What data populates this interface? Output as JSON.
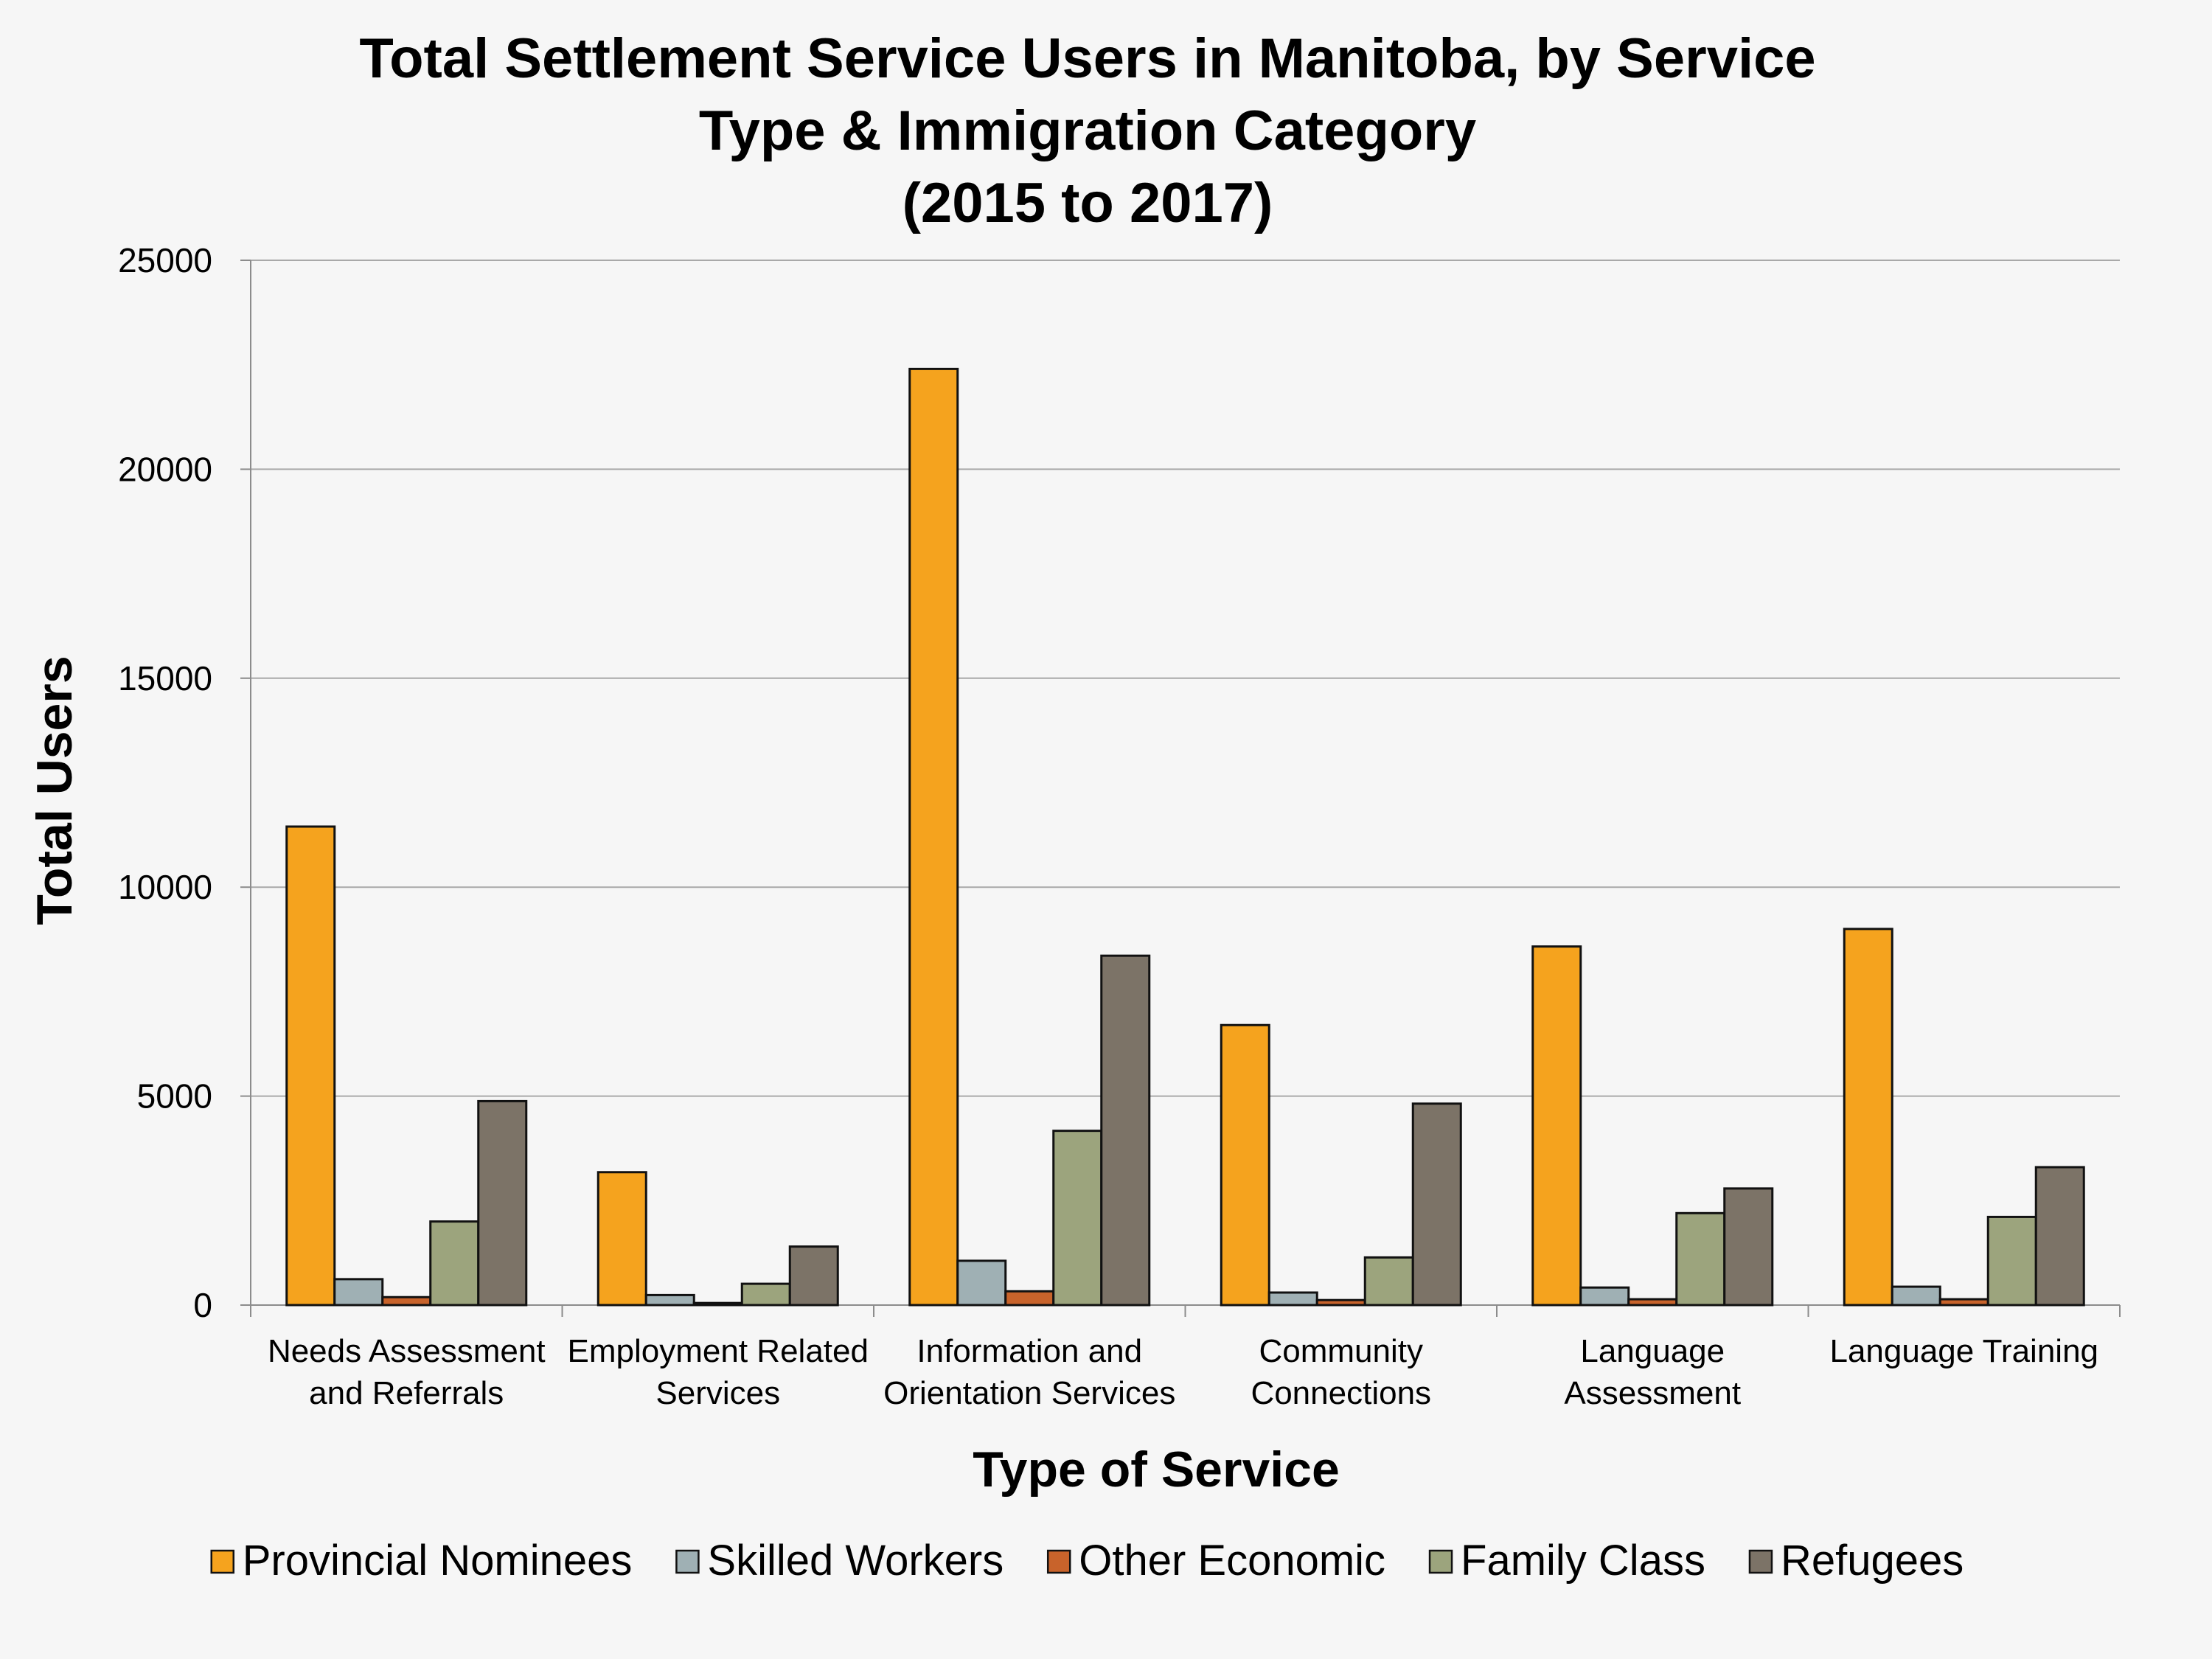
{
  "chart_data": {
    "type": "bar",
    "title": [
      "Total Settlement Service Users in Manitoba, by Service",
      "Type & Immigration Category",
      "(2015 to 2017)"
    ],
    "xlabel": "Type of Service",
    "ylabel": "Total Users",
    "ylim": [
      0,
      25000
    ],
    "yticks": [
      "0",
      "5000",
      "10000",
      "15000",
      "20000",
      "25000"
    ],
    "grid": true,
    "legend_position": "bottom",
    "categories": [
      [
        "Needs Assessment",
        "and Referrals"
      ],
      [
        "Employment Related",
        "Services"
      ],
      [
        "Information and",
        "Orientation Services"
      ],
      [
        "Community",
        "Connections"
      ],
      [
        "Language",
        "Assessment"
      ],
      [
        "Language Training"
      ]
    ],
    "series": [
      {
        "name": "Provincial Nominees",
        "color": "#f5a31e",
        "values": [
          11450,
          3180,
          22400,
          6700,
          8580,
          9000
        ]
      },
      {
        "name": "Skilled Workers",
        "color": "#9fb0b4",
        "values": [
          620,
          240,
          1060,
          300,
          420,
          440
        ]
      },
      {
        "name": "Other Economic",
        "color": "#c8632b",
        "values": [
          190,
          50,
          330,
          120,
          140,
          140
        ]
      },
      {
        "name": "Family Class",
        "color": "#9ca47d",
        "values": [
          2000,
          510,
          4170,
          1140,
          2200,
          2110
        ]
      },
      {
        "name": "Refugees",
        "color": "#7c7367",
        "values": [
          4880,
          1400,
          8360,
          4820,
          2790,
          3300
        ]
      }
    ]
  }
}
